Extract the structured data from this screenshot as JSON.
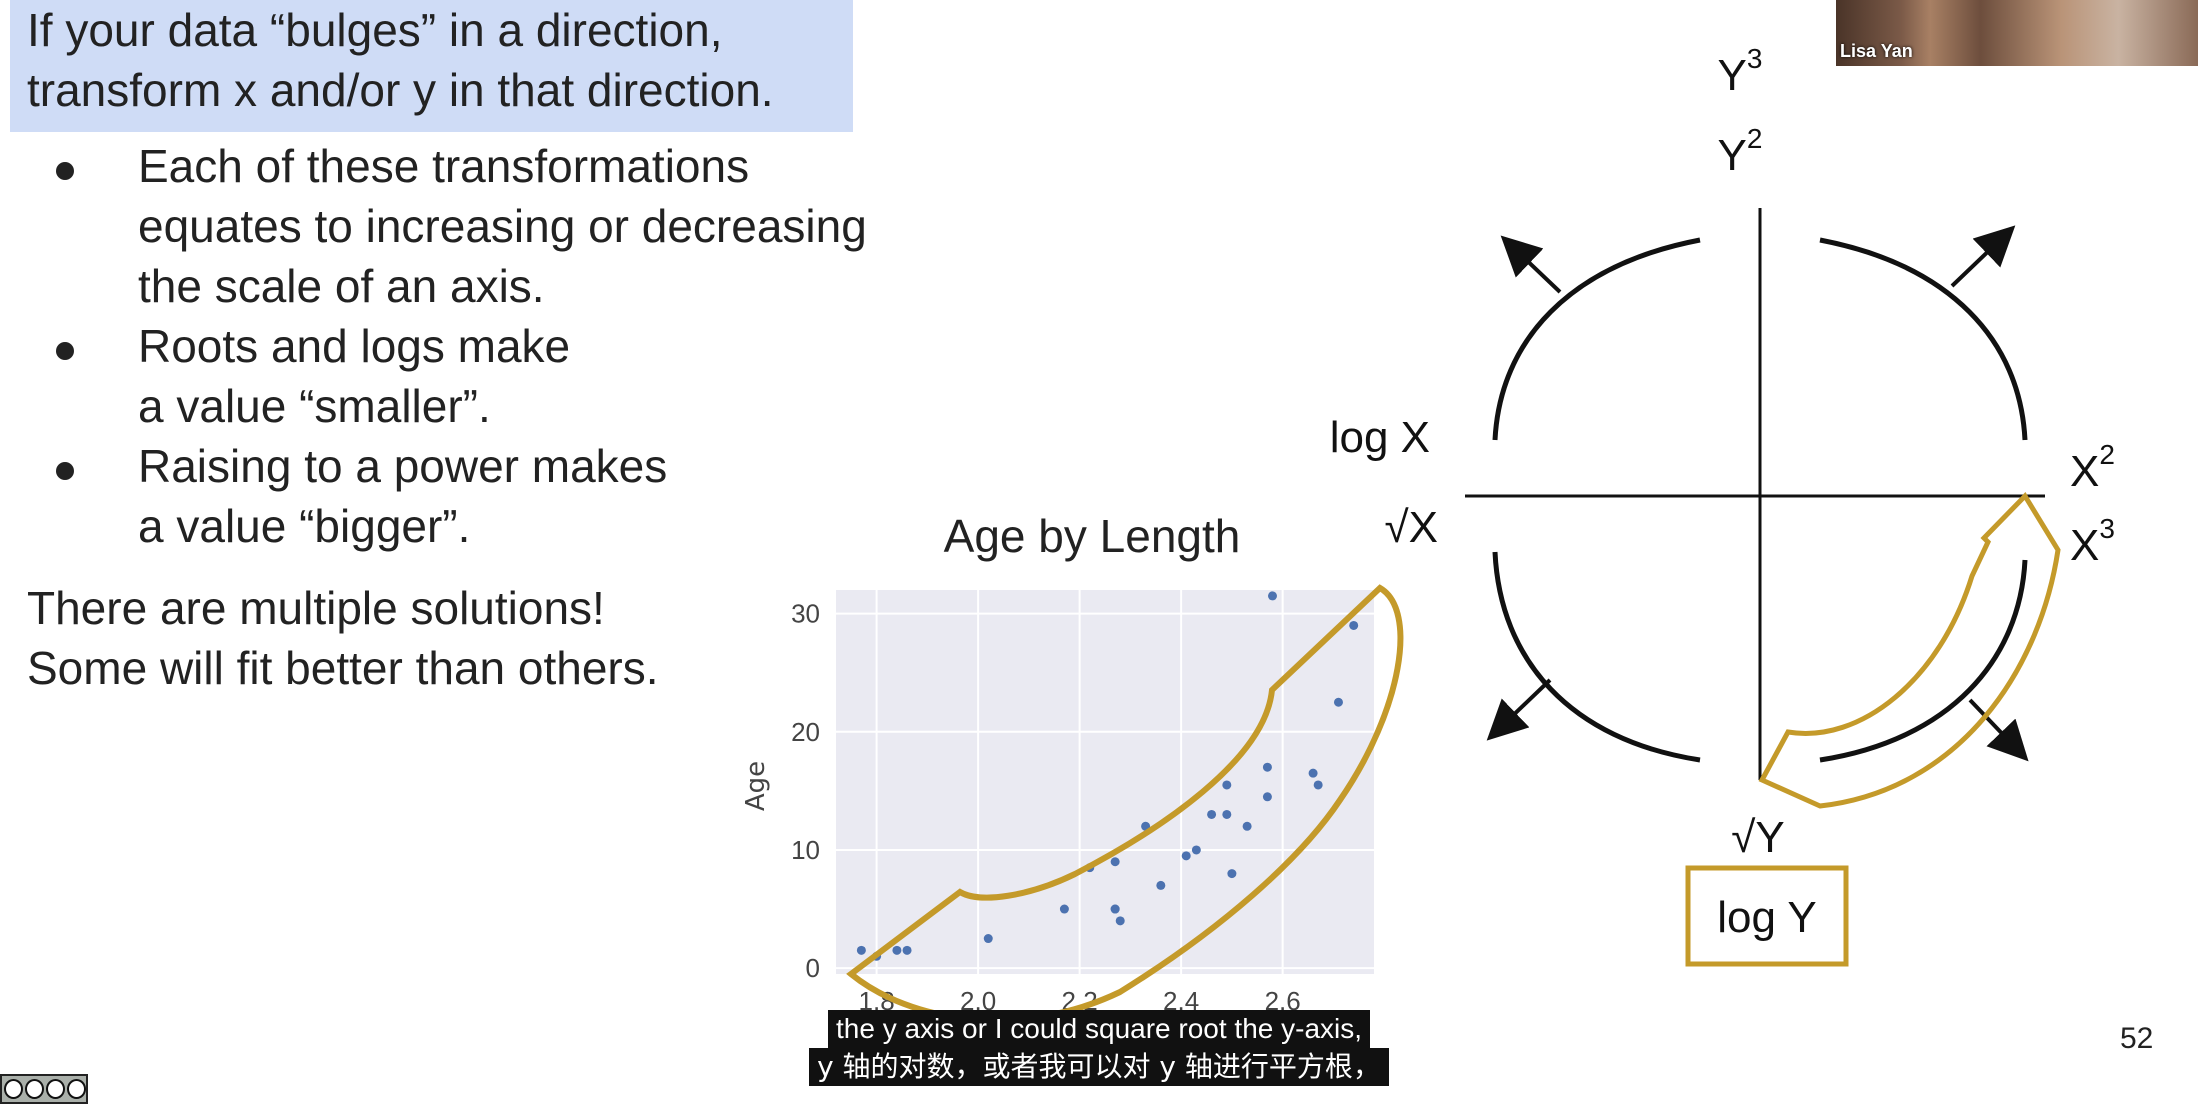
{
  "slide": {
    "headline": [
      "If your data “bulges” in a direction,",
      "transform x and/or y in that direction."
    ],
    "bullets": [
      {
        "lines": [
          "Each of these transformations",
          "equates to increasing or decreasing",
          "the scale of an axis."
        ]
      },
      {
        "lines": [
          "Roots and logs make",
          "a value “smaller”."
        ]
      },
      {
        "lines": [
          "Raising to a power makes",
          "a value “bigger”."
        ]
      }
    ],
    "closing": [
      "There are multiple solutions!",
      "Some will fit better than others."
    ],
    "page_number": "52",
    "accent_color": "#c49a2a",
    "highlight_color": "#cfdcf6"
  },
  "webcam": {
    "participant_name": "Lisa Yan"
  },
  "subtitles": {
    "english": "the y axis or I could square root the y-axis,",
    "chinese": "y 轴的对数，或者我可以对 y 轴进行平方根，"
  },
  "diagram": {
    "labels": {
      "y3": "Y",
      "y3_exp": "3",
      "y2": "Y",
      "y2_exp": "2",
      "logx": "log X",
      "sqrtx": "√X",
      "x2": "X",
      "x2_exp": "2",
      "x3": "X",
      "x3_exp": "3",
      "sqrty": "√Y",
      "logy": "log Y"
    }
  },
  "chart_data": {
    "type": "scatter",
    "title": "Age by Length",
    "xlabel": "Length",
    "ylabel": "Age",
    "xlim": [
      1.72,
      2.78
    ],
    "ylim": [
      -0.5,
      32
    ],
    "x_ticks": [
      1.8,
      2.0,
      2.2,
      2.4,
      2.6
    ],
    "x_tick_labels": [
      "1.8",
      "2.0",
      "2.2",
      "2.4",
      "2.6"
    ],
    "y_ticks": [
      0,
      10,
      20,
      30
    ],
    "y_tick_labels": [
      "0",
      "10",
      "20",
      "30"
    ],
    "grid": true,
    "point_color": "#4c72b0",
    "background": "#eaeaf2",
    "series": [
      {
        "x": [
          1.77,
          1.8,
          1.84,
          1.86,
          2.02,
          2.17,
          2.22,
          2.27,
          2.27,
          2.28,
          2.27,
          2.33,
          2.36,
          2.41,
          2.43,
          2.46,
          2.49,
          2.49,
          2.5,
          2.53,
          2.57,
          2.57,
          2.58,
          2.66,
          2.67,
          2.71,
          2.74
        ],
        "y": [
          1.5,
          1.0,
          1.5,
          1.5,
          2.5,
          5.0,
          8.5,
          9.0,
          5.0,
          4.0,
          5.0,
          12.0,
          7.0,
          9.5,
          10.0,
          13.0,
          15.5,
          13.0,
          8.0,
          12.0,
          17.0,
          14.5,
          31.5,
          16.5,
          15.5,
          22.5,
          29.0
        ]
      }
    ]
  }
}
